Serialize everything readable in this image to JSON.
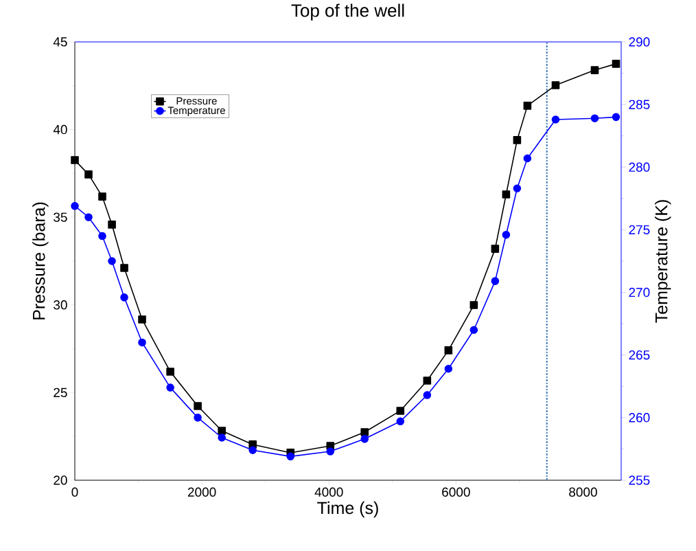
{
  "chart_data": {
    "type": "line",
    "title": "Top of the well",
    "xlabel": "Time (s)",
    "ylabel": "Pressure (bara)",
    "y2label": "Temperature (K)",
    "xlim": [
      0,
      8600
    ],
    "xticks": [
      0,
      2000,
      4000,
      6000,
      8000
    ],
    "ylim": [
      20,
      45
    ],
    "yticks": [
      20,
      25,
      30,
      35,
      40,
      45
    ],
    "y2lim": [
      255,
      290
    ],
    "y2ticks": [
      255,
      260,
      265,
      270,
      275,
      280,
      285,
      290
    ],
    "legend": "top left",
    "grid": false,
    "line_style": "solid",
    "ref_lines": [
      {
        "axis": "x",
        "value": 7430,
        "color": "#3d7ab8",
        "line_style": "dashdot"
      }
    ],
    "series": [
      {
        "name": "Pressure",
        "color": "#000000",
        "marker": "square",
        "x": [
          0,
          216,
          432,
          584,
          778,
          1059,
          1503,
          1935,
          2314,
          2800,
          3395,
          4022,
          4562,
          5124,
          5546,
          5881,
          6281,
          6616,
          6789,
          6962,
          7124,
          7568,
          8184,
          8519
        ],
        "values": [
          38.26,
          37.44,
          36.18,
          34.58,
          32.11,
          29.17,
          26.19,
          24.23,
          22.82,
          22.04,
          21.57,
          21.96,
          22.74,
          23.96,
          25.68,
          27.41,
          29.99,
          33.2,
          36.3,
          39.4,
          41.36,
          42.53,
          43.39,
          43.75
        ]
      },
      {
        "name": "Temperature",
        "color": "#0000ff",
        "marker": "circle",
        "axis": "y2",
        "x": [
          0,
          216,
          432,
          584,
          778,
          1059,
          1503,
          1935,
          2314,
          2800,
          3395,
          4022,
          4562,
          5124,
          5546,
          5881,
          6281,
          6616,
          6789,
          6962,
          7124,
          7568,
          8184,
          8519
        ],
        "values": [
          276.9,
          276.0,
          274.5,
          272.5,
          269.6,
          266.0,
          262.4,
          260.0,
          258.4,
          257.4,
          256.9,
          257.3,
          258.3,
          259.7,
          261.8,
          263.9,
          267.0,
          270.9,
          274.6,
          278.3,
          280.7,
          283.8,
          283.9,
          284.0
        ]
      }
    ]
  }
}
